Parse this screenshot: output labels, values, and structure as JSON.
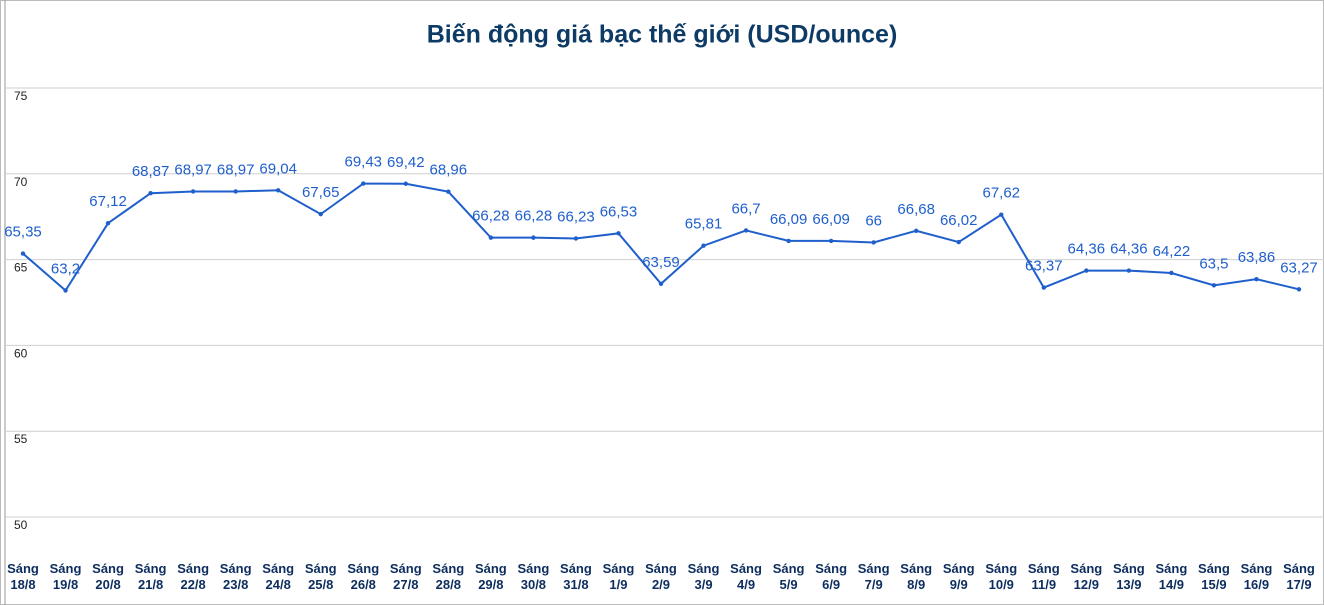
{
  "chart_data": {
    "type": "line",
    "title": "Biến động giá bạc thế giới (USD/ounce)",
    "categories": [
      "Sáng 18/8",
      "Sáng 19/8",
      "Sáng 20/8",
      "Sáng 21/8",
      "Sáng 22/8",
      "Sáng 23/8",
      "Sáng 24/8",
      "Sáng 25/8",
      "Sáng 26/8",
      "Sáng 27/8",
      "Sáng 28/8",
      "Sáng 29/8",
      "Sáng 30/8",
      "Sáng 31/8",
      "Sáng 1/9",
      "Sáng 2/9",
      "Sáng 3/9",
      "Sáng 4/9",
      "Sáng 5/9",
      "Sáng 6/9",
      "Sáng 7/9",
      "Sáng 8/9",
      "Sáng 9/9",
      "Sáng 10/9",
      "Sáng 11/9",
      "Sáng 12/9",
      "Sáng 13/9",
      "Sáng 14/9",
      "Sáng 15/9",
      "Sáng 16/9",
      "Sáng 17/9"
    ],
    "values": [
      65.35,
      63.2,
      67.12,
      68.87,
      68.97,
      68.97,
      69.04,
      67.65,
      69.43,
      69.42,
      68.96,
      66.28,
      66.28,
      66.23,
      66.53,
      63.59,
      65.81,
      66.7,
      66.09,
      66.09,
      66,
      66.68,
      66.02,
      67.62,
      63.37,
      64.36,
      64.36,
      64.22,
      63.5,
      63.86,
      63.27
    ],
    "value_labels": [
      "65,35",
      "63,2",
      "67,12",
      "68,87",
      "68,97",
      "68,97",
      "69,04",
      "67,65",
      "69,43",
      "69,42",
      "68,96",
      "66,28",
      "66,28",
      "66,23",
      "66,53",
      "63,59",
      "65,81",
      "66,7",
      "66,09",
      "66,09",
      "66",
      "66,68",
      "66,02",
      "67,62",
      "63,37",
      "64,36",
      "64,36",
      "64,22",
      "63,5",
      "63,86",
      "63,27"
    ],
    "color": "#1f5fcc",
    "ylim": [
      50,
      75
    ],
    "yticks": [
      50,
      55,
      60,
      65,
      70,
      75
    ],
    "grid": true
  }
}
